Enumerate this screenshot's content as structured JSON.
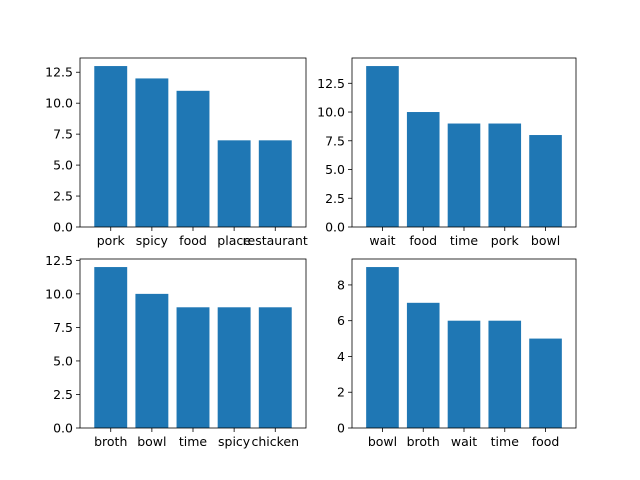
{
  "colors": {
    "bar": "#1f77b4",
    "axis": "#000000",
    "background": "#ffffff"
  },
  "chart_data": [
    {
      "type": "bar",
      "categories": [
        "pork",
        "spicy",
        "food",
        "place",
        "restaurant"
      ],
      "values": [
        13,
        12,
        11,
        7,
        7
      ],
      "ylim": [
        0,
        13.65
      ],
      "yticks": [
        0,
        2.5,
        5,
        7.5,
        10,
        12.5
      ],
      "ytick_labels": [
        "0.0",
        "2.5",
        "5.0",
        "7.5",
        "10.0",
        "12.5"
      ],
      "grid": false
    },
    {
      "type": "bar",
      "categories": [
        "wait",
        "food",
        "time",
        "pork",
        "bowl"
      ],
      "values": [
        14,
        10,
        9,
        9,
        8
      ],
      "ylim": [
        0,
        14.7
      ],
      "yticks": [
        0,
        2.5,
        5,
        7.5,
        10,
        12.5
      ],
      "ytick_labels": [
        "0.0",
        "2.5",
        "5.0",
        "7.5",
        "10.0",
        "12.5"
      ],
      "grid": false
    },
    {
      "type": "bar",
      "categories": [
        "broth",
        "bowl",
        "time",
        "spicy",
        "chicken"
      ],
      "values": [
        12,
        10,
        9,
        9,
        9
      ],
      "ylim": [
        0,
        12.6
      ],
      "yticks": [
        0,
        2.5,
        5,
        7.5,
        10,
        12.5
      ],
      "ytick_labels": [
        "0.0",
        "2.5",
        "5.0",
        "7.5",
        "10.0",
        "12.5"
      ],
      "grid": false
    },
    {
      "type": "bar",
      "categories": [
        "bowl",
        "broth",
        "wait",
        "time",
        "food"
      ],
      "values": [
        9,
        7,
        6,
        6,
        5
      ],
      "ylim": [
        0,
        9.45
      ],
      "yticks": [
        0,
        2,
        4,
        6,
        8
      ],
      "ytick_labels": [
        "0",
        "2",
        "4",
        "6",
        "8"
      ],
      "grid": false
    }
  ]
}
